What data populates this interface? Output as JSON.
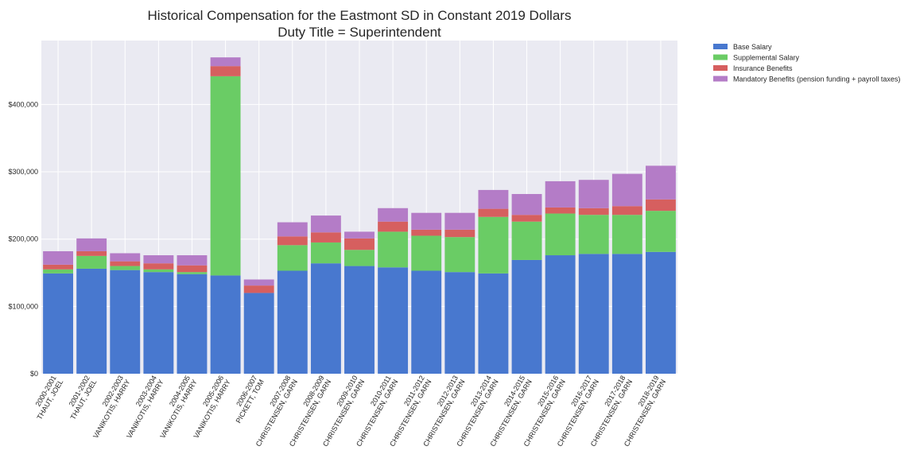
{
  "chart_data": {
    "type": "bar",
    "stacked": true,
    "title": "Historical Compensation for the Eastmont SD in Constant 2019 Dollars",
    "subtitle": "Duty Title = Superintendent",
    "xlabel": "",
    "ylabel": "",
    "ylim": [
      0,
      495000
    ],
    "yticks": [
      0,
      100000,
      200000,
      300000,
      400000
    ],
    "ytick_labels": [
      "$0",
      "$100,000",
      "$200,000",
      "$300,000",
      "$400,000"
    ],
    "grid": true,
    "legend_position": "outside-top-right",
    "categories": [
      "2000-2001\nTHAUT, JOEL",
      "2001-2002\nTHAUT, JOEL",
      "2002-2003\nVANIKOTIS, HARRY",
      "2003-2004\nVANIKOTIS, HARRY",
      "2004-2005\nVANIKOTIS, HARRY",
      "2005-2006\nVANIKOTIS, HARRY",
      "2006-2007\nPICKETT, TOM",
      "2007-2008\nCHRISTENSEN, GARN",
      "2008-2009\nCHRISTENSEN, GARN",
      "2009-2010\nCHRISTENSEN, GARN",
      "2010-2011\nCHRISTENSEN, GARN",
      "2011-2012\nCHRISTENSEN, GARN",
      "2012-2013\nCHRISTENSEN, GARN",
      "2013-2014\nCHRISTENSEN, GARN",
      "2014-2015\nCHRISTENSEN, GARN",
      "2015-2016\nCHRISTENSEN, GARN",
      "2016-2017\nCHRISTENSEN, GARN",
      "2017-2018\nCHRISTENSEN, GARN",
      "2018-2019\nCHRISTENSEN, GARN"
    ],
    "series": [
      {
        "name": "Base Salary",
        "color": "#4878cf",
        "values": [
          149000,
          156000,
          154000,
          151000,
          148000,
          146000,
          120000,
          153000,
          164000,
          160000,
          158000,
          153000,
          151000,
          149000,
          169000,
          176000,
          178000,
          178000,
          181000
        ]
      },
      {
        "name": "Supplemental Salary",
        "color": "#6acc65",
        "values": [
          6000,
          19000,
          6000,
          4000,
          3000,
          296000,
          0,
          38000,
          31000,
          24000,
          53000,
          52000,
          52000,
          84000,
          57000,
          62000,
          58000,
          58000,
          61000
        ]
      },
      {
        "name": "Insurance Benefits",
        "color": "#d65f5f",
        "values": [
          7000,
          7000,
          7000,
          9000,
          10000,
          15000,
          11000,
          13000,
          15000,
          17000,
          15000,
          9000,
          11000,
          12000,
          10000,
          9000,
          10000,
          13000,
          17000
        ]
      },
      {
        "name": "Mandatory Benefits (pension funding + payroll taxes)",
        "color": "#b47cc7",
        "values": [
          20000,
          19000,
          12000,
          12000,
          15000,
          13000,
          9000,
          21000,
          25000,
          10000,
          20000,
          25000,
          25000,
          28000,
          31000,
          39000,
          42000,
          48000,
          50000
        ]
      }
    ]
  }
}
